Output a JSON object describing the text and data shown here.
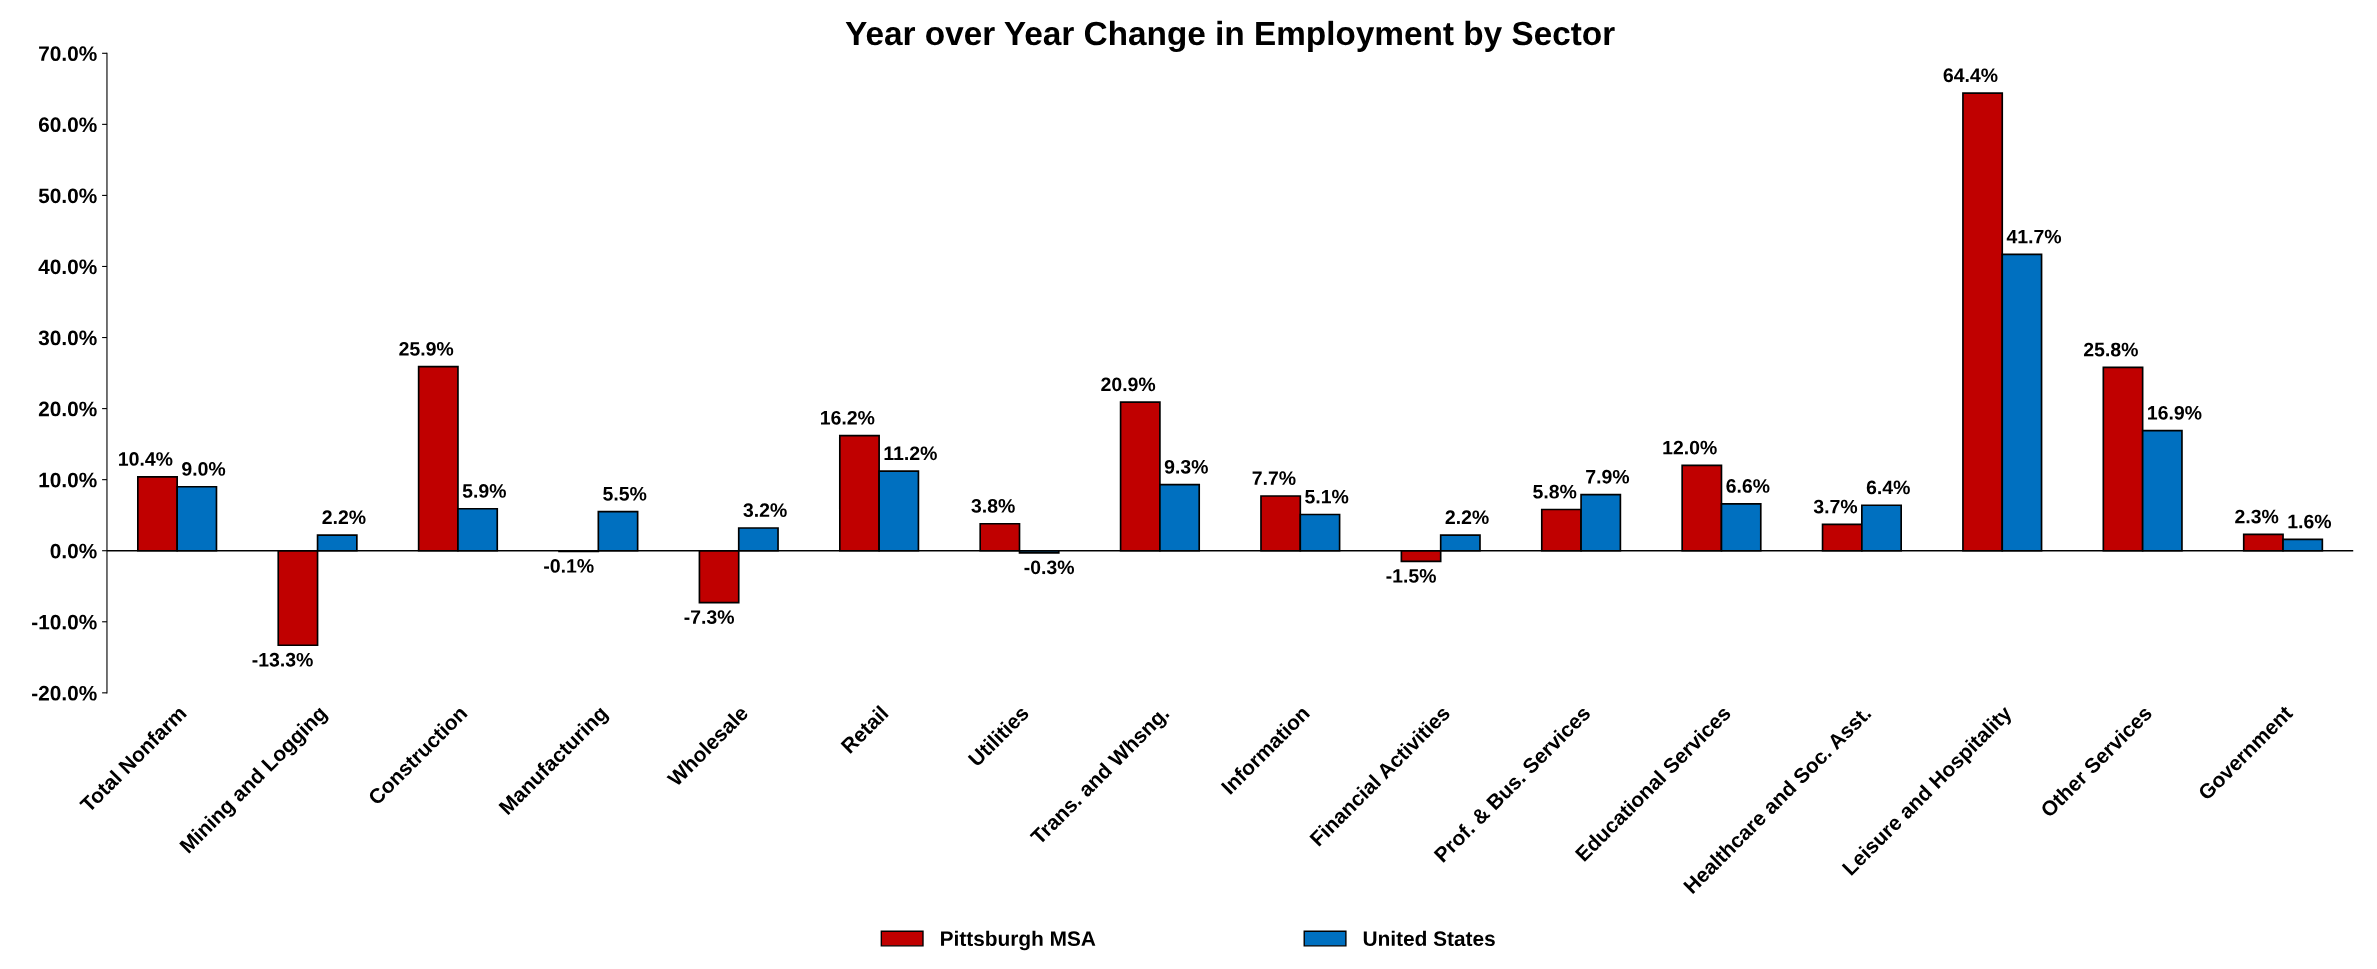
{
  "chart_data": {
    "type": "bar",
    "title": "Year over Year Change in Employment by Sector",
    "categories": [
      "Total Nonfarm",
      "Mining and Logging",
      "Construction",
      "Manufacturing",
      "Wholesale",
      "Retail",
      "Utilities",
      "Trans. and Whsng.",
      "Information",
      "Financial Activities",
      "Prof. & Bus. Services",
      "Educational Services",
      "Healthcare and Soc. Asst.",
      "Leisure and Hospitality",
      "Other Services",
      "Government"
    ],
    "series": [
      {
        "name": "Pittsburgh MSA",
        "color": "#c00000",
        "values": [
          10.4,
          -13.3,
          25.9,
          -0.1,
          -7.3,
          16.2,
          3.8,
          20.9,
          7.7,
          -1.5,
          5.8,
          12.0,
          3.7,
          64.4,
          25.8,
          2.3
        ],
        "value_labels": [
          "10.4%",
          "-13.3%",
          "25.9%",
          "-0.1%",
          "-7.3%",
          "16.2%",
          "3.8%",
          "20.9%",
          "7.7%",
          "-1.5%",
          "5.8%",
          "12.0%",
          "3.7%",
          "64.4%",
          "25.8%",
          "2.3%"
        ]
      },
      {
        "name": "United States",
        "color": "#0070c0",
        "values": [
          9.0,
          2.2,
          5.9,
          5.5,
          3.2,
          11.2,
          -0.3,
          9.3,
          5.1,
          2.2,
          7.9,
          6.6,
          6.4,
          41.7,
          16.9,
          1.6
        ],
        "value_labels": [
          "9.0%",
          "2.2%",
          "5.9%",
          "5.5%",
          "3.2%",
          "11.2%",
          "-0.3%",
          "9.3%",
          "5.1%",
          "2.2%",
          "7.9%",
          "6.6%",
          "6.4%",
          "41.7%",
          "16.9%",
          "1.6%"
        ]
      }
    ],
    "ylim": [
      -20,
      70
    ],
    "yticks": [
      {
        "value": -20,
        "label": "-20.0%"
      },
      {
        "value": -10,
        "label": "-10.0%"
      },
      {
        "value": 0,
        "label": "0.0%"
      },
      {
        "value": 10,
        "label": "10.0%"
      },
      {
        "value": 20,
        "label": "20.0%"
      },
      {
        "value": 30,
        "label": "30.0%"
      },
      {
        "value": 40,
        "label": "40.0%"
      },
      {
        "value": 50,
        "label": "50.0%"
      },
      {
        "value": 60,
        "label": "60.0%"
      },
      {
        "value": 70,
        "label": "70.0%"
      }
    ],
    "legend": "bottom"
  }
}
